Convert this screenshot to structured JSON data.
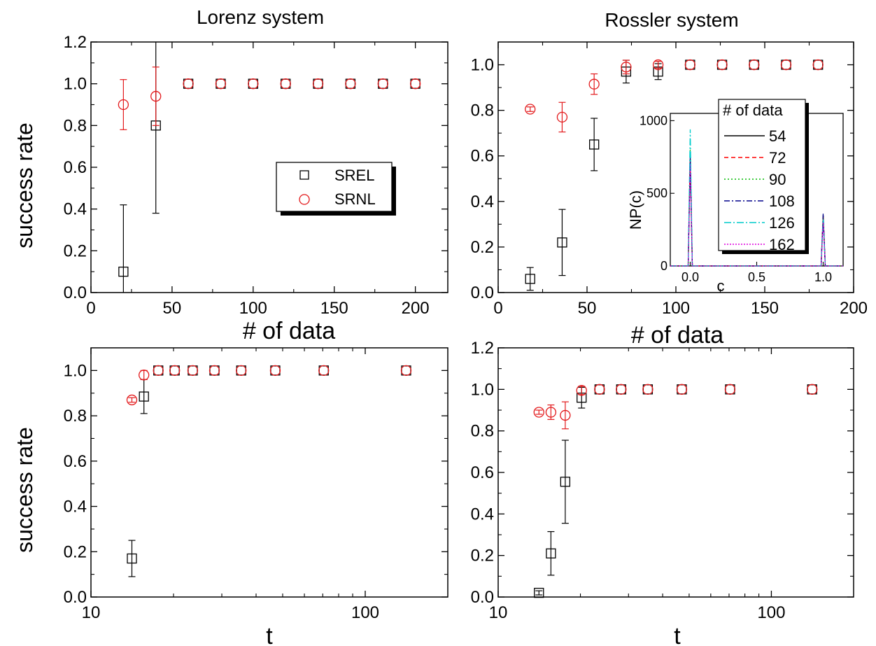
{
  "colors": {
    "srel": "#000000",
    "srnl": "#e31a1c",
    "inset_series": [
      "#000000",
      "#ff0000",
      "#00bb00",
      "#00008b",
      "#00cccc",
      "#dd00dd"
    ]
  },
  "chart_data": [
    {
      "id": "top-left",
      "type": "scatter",
      "title": "Lorenz system",
      "xlabel": "# of data",
      "ylabel": "success rate",
      "xlim": [
        0,
        220
      ],
      "ylim": [
        0,
        1.2
      ],
      "xscale": "linear",
      "xticks": [
        0,
        50,
        100,
        150,
        200
      ],
      "xtick_labels": [
        "0",
        "50",
        "100",
        "150",
        "200"
      ],
      "yticks": [
        0,
        0.2,
        0.4,
        0.6,
        0.8,
        1.0,
        1.2
      ],
      "ytick_labels": [
        "0.0",
        "0.2",
        "0.4",
        "0.6",
        "0.8",
        "1.0",
        "1.2"
      ],
      "legend": {
        "position": "center-right",
        "entries": [
          "SREL",
          "SRNL"
        ]
      },
      "series": [
        {
          "name": "SREL",
          "marker": "square",
          "x": [
            20,
            40,
            60,
            80,
            100,
            120,
            140,
            160,
            180,
            200
          ],
          "y": [
            0.1,
            0.8,
            1.0,
            1.0,
            1.0,
            1.0,
            1.0,
            1.0,
            1.0,
            1.0
          ],
          "err": [
            0.32,
            0.42,
            0,
            0,
            0,
            0,
            0,
            0,
            0,
            0
          ]
        },
        {
          "name": "SRNL",
          "marker": "circle",
          "x": [
            20,
            40,
            60,
            80,
            100,
            120,
            140,
            160,
            180,
            200
          ],
          "y": [
            0.9,
            0.94,
            1.0,
            1.0,
            1.0,
            1.0,
            1.0,
            1.0,
            1.0,
            1.0
          ],
          "err": [
            0.12,
            0.14,
            0,
            0,
            0,
            0,
            0,
            0,
            0,
            0
          ]
        }
      ]
    },
    {
      "id": "top-right",
      "type": "scatter",
      "title": "Rossler system",
      "xlabel": "# of data",
      "ylabel": "",
      "xlim": [
        0,
        200
      ],
      "ylim": [
        0,
        1.1
      ],
      "xscale": "linear",
      "xticks": [
        0,
        50,
        100,
        150,
        200
      ],
      "xtick_labels": [
        "0",
        "50",
        "100",
        "150",
        "200"
      ],
      "yticks": [
        0,
        0.2,
        0.4,
        0.6,
        0.8,
        1.0
      ],
      "ytick_labels": [
        "0.0",
        "0.2",
        "0.4",
        "0.6",
        "0.8",
        "1.0"
      ],
      "series": [
        {
          "name": "SREL",
          "marker": "square",
          "x": [
            18,
            36,
            54,
            72,
            90,
            108,
            126,
            144,
            162,
            180
          ],
          "y": [
            0.06,
            0.22,
            0.65,
            0.97,
            0.97,
            1.0,
            1.0,
            1.0,
            1.0,
            1.0
          ],
          "err": [
            0.05,
            0.145,
            0.115,
            0.05,
            0.035,
            0,
            0,
            0,
            0,
            0
          ]
        },
        {
          "name": "SRNL",
          "marker": "circle",
          "x": [
            18,
            36,
            54,
            72,
            90,
            108,
            126,
            144,
            162,
            180
          ],
          "y": [
            0.805,
            0.77,
            0.915,
            0.99,
            1.0,
            1.0,
            1.0,
            1.0,
            1.0,
            1.0
          ],
          "err": [
            0.01,
            0.065,
            0.045,
            0.03,
            0.015,
            0,
            0,
            0,
            0,
            0
          ]
        }
      ],
      "inset": {
        "type": "line",
        "xlabel": "c",
        "ylabel": "NP(c)",
        "xlim": [
          -0.15,
          1.15
        ],
        "ylim": [
          0,
          1050
        ],
        "xticks": [
          0.0,
          0.5,
          1.0
        ],
        "xtick_labels": [
          "0.0",
          "0.5",
          "1.0"
        ],
        "yticks": [
          0,
          500,
          1000
        ],
        "ytick_labels": [
          "0",
          "500",
          "1000"
        ],
        "legend": {
          "position": "top-right",
          "title": "# of data",
          "entries": [
            "54",
            "72",
            "90",
            "108",
            "126",
            "162"
          ]
        },
        "series": [
          {
            "name": "54",
            "peak1": 730,
            "peak2": 350
          },
          {
            "name": "72",
            "peak1": 720,
            "peak2": 340
          },
          {
            "name": "90",
            "peak1": 800,
            "peak2": 330
          },
          {
            "name": "108",
            "peak1": 760,
            "peak2": 360
          },
          {
            "name": "126",
            "peak1": 940,
            "peak2": 320
          },
          {
            "name": "162",
            "peak1": 700,
            "peak2": 300
          }
        ]
      }
    },
    {
      "id": "bottom-left",
      "type": "scatter",
      "title": "",
      "xlabel": "t",
      "ylabel": "success rate",
      "xlim": [
        10,
        200
      ],
      "ylim": [
        0,
        1.1
      ],
      "xscale": "log",
      "xticks": [
        10,
        100
      ],
      "xtick_labels": [
        "10",
        "100"
      ],
      "yticks": [
        0,
        0.2,
        0.4,
        0.6,
        0.8,
        1.0
      ],
      "ytick_labels": [
        "0.0",
        "0.2",
        "0.4",
        "0.6",
        "0.8",
        "1.0"
      ],
      "series": [
        {
          "name": "SREL",
          "marker": "square",
          "x": [
            14.1,
            15.6,
            17.6,
            20.2,
            23.5,
            28.2,
            35.3,
            47,
            70.6,
            141
          ],
          "y": [
            0.17,
            0.885,
            1.0,
            1.0,
            1.0,
            1.0,
            1.0,
            1.0,
            1.0,
            1.0
          ],
          "err": [
            0.08,
            0.075,
            0,
            0,
            0,
            0,
            0,
            0,
            0,
            0
          ]
        },
        {
          "name": "SRNL",
          "marker": "circle",
          "x": [
            14.1,
            15.6,
            17.6,
            20.2,
            23.5,
            28.2,
            35.3,
            47,
            70.6,
            141
          ],
          "y": [
            0.87,
            0.98,
            1.0,
            1.0,
            1.0,
            1.0,
            1.0,
            1.0,
            1.0,
            1.0
          ],
          "err": [
            0.01,
            0.02,
            0,
            0,
            0,
            0,
            0,
            0,
            0,
            0
          ]
        }
      ]
    },
    {
      "id": "bottom-right",
      "type": "scatter",
      "title": "",
      "xlabel": "t",
      "ylabel": "",
      "xlim": [
        10,
        200
      ],
      "ylim": [
        0,
        1.2
      ],
      "xscale": "log",
      "xticks": [
        10,
        100
      ],
      "xtick_labels": [
        "10",
        "100"
      ],
      "yticks": [
        0,
        0.2,
        0.4,
        0.6,
        0.8,
        1.0,
        1.2
      ],
      "ytick_labels": [
        "0.0",
        "0.2",
        "0.4",
        "0.6",
        "0.8",
        "1.0",
        "1.2"
      ],
      "series": [
        {
          "name": "SREL",
          "marker": "square",
          "x": [
            14.1,
            15.6,
            17.6,
            20.2,
            23.5,
            28.2,
            35.3,
            47,
            70.6,
            141
          ],
          "y": [
            0.02,
            0.21,
            0.555,
            0.96,
            1.0,
            1.0,
            1.0,
            1.0,
            1.0,
            1.0
          ],
          "err": [
            0.01,
            0.105,
            0.2,
            0.05,
            0,
            0,
            0,
            0,
            0,
            0
          ]
        },
        {
          "name": "SRNL",
          "marker": "circle",
          "x": [
            14.1,
            15.6,
            17.6,
            20.2,
            23.5,
            28.2,
            35.3,
            47,
            70.6,
            141
          ],
          "y": [
            0.89,
            0.89,
            0.875,
            0.995,
            1.0,
            1.0,
            1.0,
            1.0,
            1.0,
            1.0
          ],
          "err": [
            0.01,
            0.035,
            0.065,
            0.02,
            0,
            0,
            0,
            0,
            0,
            0
          ]
        }
      ]
    }
  ]
}
